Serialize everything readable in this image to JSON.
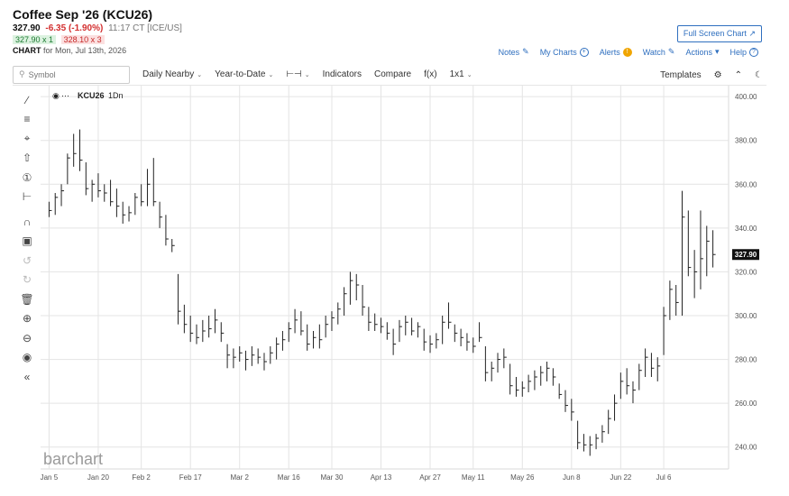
{
  "header": {
    "title": "Coffee Sep '26 (KCU26)",
    "last": "327.90",
    "change": "-6.35 (-1.90%)",
    "time": "11:17 CT [ICE/US]",
    "bid": "327.90 x 1",
    "ask": "328.10 x 3",
    "chart_label": "CHART",
    "chart_date": "for Mon, Jul 13th, 2026"
  },
  "buttons": {
    "full_screen": "Full Screen Chart"
  },
  "toplinks": {
    "notes": "Notes",
    "my_charts": "My Charts",
    "alerts": "Alerts",
    "watch": "Watch",
    "actions": "Actions",
    "help": "Help"
  },
  "toolbar": {
    "search_placeholder": "Symbol",
    "period": "Daily Nearby",
    "range": "Year-to-Date",
    "indicators": "Indicators",
    "compare": "Compare",
    "fx": "f(x)",
    "layout": "1x1",
    "templates": "Templates"
  },
  "legend_symbol": "KCU26",
  "legend_interval": "1Dn",
  "watermark": "barchart",
  "price_tag": "327.90",
  "colors": {
    "link": "#2f6fbf",
    "down": "#d32f2f",
    "bar": "#222222",
    "grid": "#e4e4e4"
  },
  "chart_data": {
    "type": "ohlc-bar",
    "ylim": [
      230,
      405
    ],
    "y_ticks": [
      "400.00",
      "380.00",
      "360.00",
      "340.00",
      "320.00",
      "300.00",
      "280.00",
      "260.00",
      "240.00"
    ],
    "x_labels": [
      "Jan 5",
      "Jan 20",
      "Feb 2",
      "Feb 17",
      "Mar 2",
      "Mar 16",
      "Mar 30",
      "Apr 13",
      "Apr 27",
      "May 11",
      "May 26",
      "Jun 8",
      "Jun 22",
      "Jul 6"
    ],
    "last_price": 327.9,
    "bars": [
      {
        "h": 352,
        "l": 345,
        "c": 348
      },
      {
        "h": 356,
        "l": 346,
        "c": 354
      },
      {
        "h": 360,
        "l": 350,
        "c": 357
      },
      {
        "h": 374,
        "l": 360,
        "c": 372
      },
      {
        "h": 383,
        "l": 368,
        "c": 374
      },
      {
        "h": 385,
        "l": 366,
        "c": 371
      },
      {
        "h": 370,
        "l": 355,
        "c": 358
      },
      {
        "h": 362,
        "l": 352,
        "c": 360
      },
      {
        "h": 365,
        "l": 354,
        "c": 357
      },
      {
        "h": 360,
        "l": 352,
        "c": 356
      },
      {
        "h": 362,
        "l": 350,
        "c": 352
      },
      {
        "h": 358,
        "l": 345,
        "c": 350
      },
      {
        "h": 352,
        "l": 342,
        "c": 346
      },
      {
        "h": 350,
        "l": 343,
        "c": 347
      },
      {
        "h": 356,
        "l": 346,
        "c": 354
      },
      {
        "h": 360,
        "l": 350,
        "c": 352
      },
      {
        "h": 367,
        "l": 350,
        "c": 360
      },
      {
        "h": 372,
        "l": 350,
        "c": 352
      },
      {
        "h": 352,
        "l": 340,
        "c": 345
      },
      {
        "h": 346,
        "l": 332,
        "c": 335
      },
      {
        "h": 335,
        "l": 329,
        "c": 332
      },
      {
        "h": 319,
        "l": 296,
        "c": 302
      },
      {
        "h": 305,
        "l": 292,
        "c": 296
      },
      {
        "h": 300,
        "l": 288,
        "c": 292
      },
      {
        "h": 296,
        "l": 287,
        "c": 290
      },
      {
        "h": 298,
        "l": 288,
        "c": 293
      },
      {
        "h": 300,
        "l": 290,
        "c": 294
      },
      {
        "h": 303,
        "l": 292,
        "c": 298
      },
      {
        "h": 297,
        "l": 288,
        "c": 292
      },
      {
        "h": 287,
        "l": 276,
        "c": 282
      },
      {
        "h": 285,
        "l": 276,
        "c": 281
      },
      {
        "h": 286,
        "l": 279,
        "c": 283
      },
      {
        "h": 284,
        "l": 275,
        "c": 280
      },
      {
        "h": 286,
        "l": 277,
        "c": 282
      },
      {
        "h": 285,
        "l": 278,
        "c": 281
      },
      {
        "h": 283,
        "l": 275,
        "c": 279
      },
      {
        "h": 286,
        "l": 278,
        "c": 283
      },
      {
        "h": 290,
        "l": 280,
        "c": 287
      },
      {
        "h": 293,
        "l": 284,
        "c": 289
      },
      {
        "h": 297,
        "l": 288,
        "c": 294
      },
      {
        "h": 303,
        "l": 292,
        "c": 298
      },
      {
        "h": 302,
        "l": 291,
        "c": 293
      },
      {
        "h": 296,
        "l": 284,
        "c": 287
      },
      {
        "h": 293,
        "l": 285,
        "c": 290
      },
      {
        "h": 296,
        "l": 285,
        "c": 289
      },
      {
        "h": 300,
        "l": 290,
        "c": 296
      },
      {
        "h": 302,
        "l": 293,
        "c": 299
      },
      {
        "h": 306,
        "l": 296,
        "c": 303
      },
      {
        "h": 313,
        "l": 300,
        "c": 310
      },
      {
        "h": 320,
        "l": 305,
        "c": 316
      },
      {
        "h": 319,
        "l": 307,
        "c": 314
      },
      {
        "h": 314,
        "l": 300,
        "c": 304
      },
      {
        "h": 304,
        "l": 293,
        "c": 297
      },
      {
        "h": 301,
        "l": 293,
        "c": 296
      },
      {
        "h": 299,
        "l": 292,
        "c": 295
      },
      {
        "h": 297,
        "l": 289,
        "c": 292
      },
      {
        "h": 294,
        "l": 282,
        "c": 287
      },
      {
        "h": 298,
        "l": 288,
        "c": 295
      },
      {
        "h": 300,
        "l": 291,
        "c": 297
      },
      {
        "h": 299,
        "l": 291,
        "c": 293
      },
      {
        "h": 297,
        "l": 290,
        "c": 295
      },
      {
        "h": 294,
        "l": 284,
        "c": 288
      },
      {
        "h": 291,
        "l": 283,
        "c": 287
      },
      {
        "h": 292,
        "l": 285,
        "c": 289
      },
      {
        "h": 300,
        "l": 287,
        "c": 297
      },
      {
        "h": 306,
        "l": 294,
        "c": 297
      },
      {
        "h": 296,
        "l": 288,
        "c": 292
      },
      {
        "h": 294,
        "l": 286,
        "c": 290
      },
      {
        "h": 292,
        "l": 284,
        "c": 288
      },
      {
        "h": 290,
        "l": 283,
        "c": 286
      },
      {
        "h": 297,
        "l": 288,
        "c": 290
      },
      {
        "h": 286,
        "l": 270,
        "c": 274
      },
      {
        "h": 279,
        "l": 270,
        "c": 276
      },
      {
        "h": 283,
        "l": 274,
        "c": 280
      },
      {
        "h": 285,
        "l": 276,
        "c": 281
      },
      {
        "h": 278,
        "l": 264,
        "c": 268
      },
      {
        "h": 272,
        "l": 263,
        "c": 266
      },
      {
        "h": 270,
        "l": 263,
        "c": 267
      },
      {
        "h": 273,
        "l": 265,
        "c": 270
      },
      {
        "h": 275,
        "l": 266,
        "c": 272
      },
      {
        "h": 277,
        "l": 268,
        "c": 274
      },
      {
        "h": 279,
        "l": 270,
        "c": 276
      },
      {
        "h": 276,
        "l": 268,
        "c": 272
      },
      {
        "h": 269,
        "l": 262,
        "c": 264
      },
      {
        "h": 266,
        "l": 256,
        "c": 259
      },
      {
        "h": 262,
        "l": 252,
        "c": 256
      },
      {
        "h": 252,
        "l": 239,
        "c": 242
      },
      {
        "h": 246,
        "l": 238,
        "c": 241
      },
      {
        "h": 245,
        "l": 236,
        "c": 241
      },
      {
        "h": 246,
        "l": 239,
        "c": 244
      },
      {
        "h": 250,
        "l": 242,
        "c": 247
      },
      {
        "h": 257,
        "l": 246,
        "c": 253
      },
      {
        "h": 264,
        "l": 252,
        "c": 260
      },
      {
        "h": 274,
        "l": 262,
        "c": 270
      },
      {
        "h": 276,
        "l": 264,
        "c": 268
      },
      {
        "h": 270,
        "l": 260,
        "c": 266
      },
      {
        "h": 278,
        "l": 266,
        "c": 275
      },
      {
        "h": 285,
        "l": 272,
        "c": 281
      },
      {
        "h": 283,
        "l": 272,
        "c": 276
      },
      {
        "h": 281,
        "l": 270,
        "c": 277
      },
      {
        "h": 304,
        "l": 282,
        "c": 300
      },
      {
        "h": 316,
        "l": 298,
        "c": 312
      },
      {
        "h": 314,
        "l": 300,
        "c": 306
      },
      {
        "h": 357,
        "l": 300,
        "c": 345
      },
      {
        "h": 348,
        "l": 318,
        "c": 322
      },
      {
        "h": 330,
        "l": 308,
        "c": 320
      },
      {
        "h": 348,
        "l": 312,
        "c": 326
      },
      {
        "h": 341,
        "l": 318,
        "c": 334
      },
      {
        "h": 339,
        "l": 322,
        "c": 327.9
      }
    ]
  }
}
